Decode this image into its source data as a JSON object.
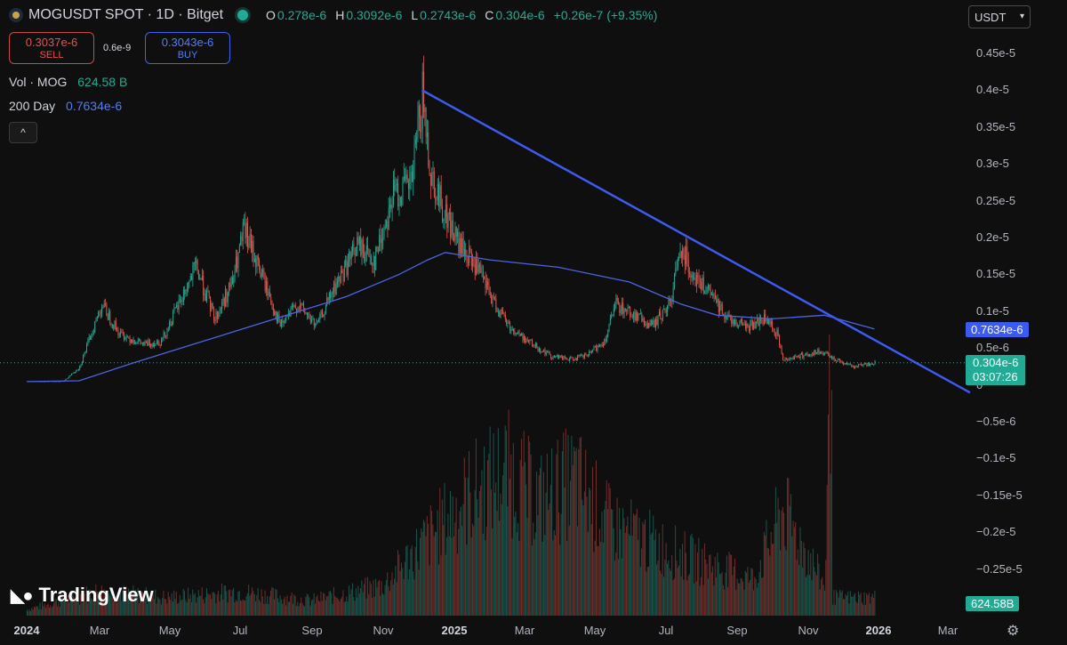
{
  "header": {
    "symbol": "MOGUSDT SPOT · 1D · Bitget",
    "open_label": "O",
    "open": "0.278e-6",
    "high_label": "H",
    "high": "0.3092e-6",
    "low_label": "L",
    "low": "0.2743e-6",
    "close_label": "C",
    "close": "0.304e-6",
    "change": "+0.26e-7 (+9.35%)"
  },
  "trade": {
    "sell_price": "0.3037e-6",
    "sell_label": "SELL",
    "spread": "0.6e-9",
    "buy_price": "0.3043e-6",
    "buy_label": "BUY"
  },
  "legends": {
    "volume_label": "Vol · MOG",
    "volume_value": "624.58 B",
    "ma_label": "200 Day",
    "ma_value": "0.7634e-6",
    "collapse_icon": "^"
  },
  "currency": {
    "value": "USDT"
  },
  "y_axis_ticks": [
    "0.45e-5",
    "0.4e-5",
    "0.35e-5",
    "0.3e-5",
    "0.25e-5",
    "0.2e-5",
    "0.15e-5",
    "0.1e-5",
    "0.5e-6",
    "0",
    "−0.5e-6",
    "−0.1e-5",
    "−0.15e-5",
    "−0.2e-5",
    "−0.25e-5"
  ],
  "x_axis_ticks": [
    {
      "label": "2024",
      "bold": true
    },
    {
      "label": "Mar",
      "bold": false
    },
    {
      "label": "May",
      "bold": false
    },
    {
      "label": "Jul",
      "bold": false
    },
    {
      "label": "Sep",
      "bold": false
    },
    {
      "label": "Nov",
      "bold": false
    },
    {
      "label": "2025",
      "bold": true
    },
    {
      "label": "Mar",
      "bold": false
    },
    {
      "label": "May",
      "bold": false
    },
    {
      "label": "Jul",
      "bold": false
    },
    {
      "label": "Sep",
      "bold": false
    },
    {
      "label": "Nov",
      "bold": false
    },
    {
      "label": "2026",
      "bold": true
    },
    {
      "label": "Mar",
      "bold": false
    }
  ],
  "badges": {
    "ma": "0.7634e-6",
    "price": "0.304e-6",
    "countdown": "03:07:26",
    "volume": "624.58B"
  },
  "logo": {
    "text": "TradingView"
  },
  "colors": {
    "up": "#22ab94",
    "down": "#e5534b",
    "ma": "#4e63e0",
    "trendline": "#3d5af1",
    "background": "#0f0f0f"
  },
  "chart_data": {
    "type": "line",
    "series": [
      {
        "name": "MOGUSDT",
        "x": [
          "2024-01-01",
          "2024-02-01",
          "2024-02-15",
          "2024-03-05",
          "2024-03-20",
          "2024-04-10",
          "2024-04-25",
          "2024-05-10",
          "2024-05-25",
          "2024-06-10",
          "2024-06-25",
          "2024-07-05",
          "2024-07-20",
          "2024-08-05",
          "2024-08-20",
          "2024-09-05",
          "2024-09-20",
          "2024-10-10",
          "2024-10-25",
          "2024-11-10",
          "2024-11-25",
          "2024-12-05",
          "2024-12-12",
          "2024-12-20",
          "2025-01-05",
          "2025-01-20",
          "2025-02-05",
          "2025-02-20",
          "2025-03-10",
          "2025-03-25",
          "2025-04-10",
          "2025-04-25",
          "2025-05-10",
          "2025-05-20",
          "2025-06-05",
          "2025-06-20",
          "2025-07-05",
          "2025-07-15",
          "2025-07-25",
          "2025-08-10",
          "2025-08-25",
          "2025-09-10",
          "2025-09-25",
          "2025-10-05",
          "2025-10-10",
          "2025-10-25",
          "2025-11-10",
          "2025-11-25",
          "2025-12-10",
          "2025-12-28"
        ],
        "values": [
          5e-08,
          5e-08,
          2.5e-07,
          1.1e-06,
          7e-07,
          5.5e-07,
          6e-07,
          1.1e-06,
          1.6e-06,
          9e-07,
          1.4e-06,
          2.1e-06,
          1.5e-06,
          8e-07,
          1.1e-06,
          8e-07,
          1.3e-06,
          1.9e-06,
          1.7e-06,
          2.6e-06,
          2.7e-06,
          3.9e-06,
          2.9e-06,
          2.5e-06,
          1.9e-06,
          1.6e-06,
          1.1e-06,
          7.5e-07,
          5.5e-07,
          4e-07,
          3.5e-07,
          4e-07,
          6e-07,
          1.1e-06,
          9.5e-07,
          8e-07,
          1.1e-06,
          1.9e-06,
          1.5e-06,
          1.2e-06,
          9e-07,
          8e-07,
          9e-07,
          7e-07,
          3.5e-07,
          4e-07,
          4.5e-07,
          3.5e-07,
          2.5e-07,
          3.04e-07
        ]
      },
      {
        "name": "200 Day",
        "x": [
          "2024-01-01",
          "2024-02-15",
          "2024-04-01",
          "2024-06-01",
          "2024-08-01",
          "2024-10-01",
          "2024-11-15",
          "2024-12-10",
          "2024-12-25",
          "2025-02-01",
          "2025-04-01",
          "2025-06-01",
          "2025-07-15",
          "2025-08-15",
          "2025-10-01",
          "2025-11-15",
          "2025-12-28"
        ],
        "values": [
          5e-08,
          6e-08,
          3e-07,
          6e-07,
          9e-07,
          1.2e-06,
          1.5e-06,
          1.7e-06,
          1.8e-06,
          1.7e-06,
          1.6e-06,
          1.4e-06,
          1.1e-06,
          9.5e-07,
          9e-07,
          9.5e-07,
          7.634e-07
        ]
      },
      {
        "x": [
          "2024-12-05",
          "2026-03-20"
        ],
        "values": [
          4e-06,
          -1e-07
        ]
      }
    ],
    "volume": {
      "x": [
        "2024-01-01",
        "2024-03-01",
        "2024-05-01",
        "2024-07-01",
        "2024-09-01",
        "2024-11-01",
        "2024-12-01",
        "2025-01-15",
        "2025-02-15",
        "2025-03-15",
        "2025-04-15",
        "2025-05-15",
        "2025-07-15",
        "2025-09-15",
        "2025-10-10",
        "2025-11-15",
        "2025-12-28"
      ],
      "values": [
        2,
        8,
        6,
        8,
        5,
        10,
        22,
        40,
        48,
        38,
        45,
        30,
        20,
        12,
        35,
        10,
        624.58
      ],
      "unit": "B"
    },
    "ylim": [
      -2.8e-06,
      4.8e-06
    ],
    "y_scale": "linear",
    "grid": false,
    "last_price": 3.04e-07,
    "ma_last": 7.634e-07
  }
}
